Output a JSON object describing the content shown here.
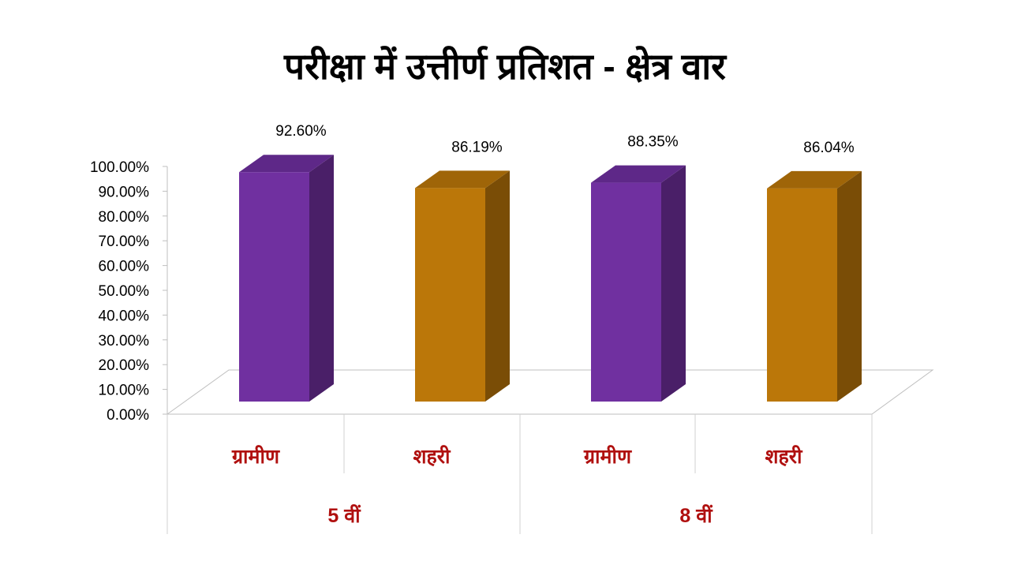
{
  "chart_data": {
    "type": "bar",
    "title": "परीक्षा में उत्तीर्ण प्रतिशत - क्षेत्र वार",
    "categories": [
      "ग्रामीण",
      "शहरी",
      "ग्रामीण",
      "शहरी"
    ],
    "groups": [
      {
        "label": "5 वीं",
        "categories": [
          "ग्रामीण",
          "शहरी"
        ]
      },
      {
        "label": "8 वीं",
        "categories": [
          "ग्रामीण",
          "शहरी"
        ]
      }
    ],
    "values": [
      92.6,
      86.19,
      88.35,
      86.04
    ],
    "data_labels": [
      "92.60%",
      "86.19%",
      "88.35%",
      "86.04%"
    ],
    "colors": [
      "#7030a0",
      "#bb7709",
      "#7030a0",
      "#bb7709"
    ],
    "side_colors": [
      "#4a1f68",
      "#7a4d06",
      "#4a1f68",
      "#7a4d06"
    ],
    "top_colors": [
      "#5e2888",
      "#9f6508",
      "#5e2888",
      "#9f6508"
    ],
    "ylim": [
      0,
      100
    ],
    "yticks": [
      "0.00%",
      "10.00%",
      "20.00%",
      "30.00%",
      "40.00%",
      "50.00%",
      "60.00%",
      "70.00%",
      "80.00%",
      "90.00%",
      "100.00%"
    ],
    "xlabel": "",
    "ylabel": "",
    "grid": false,
    "legend": "none",
    "style": "3d-column"
  }
}
